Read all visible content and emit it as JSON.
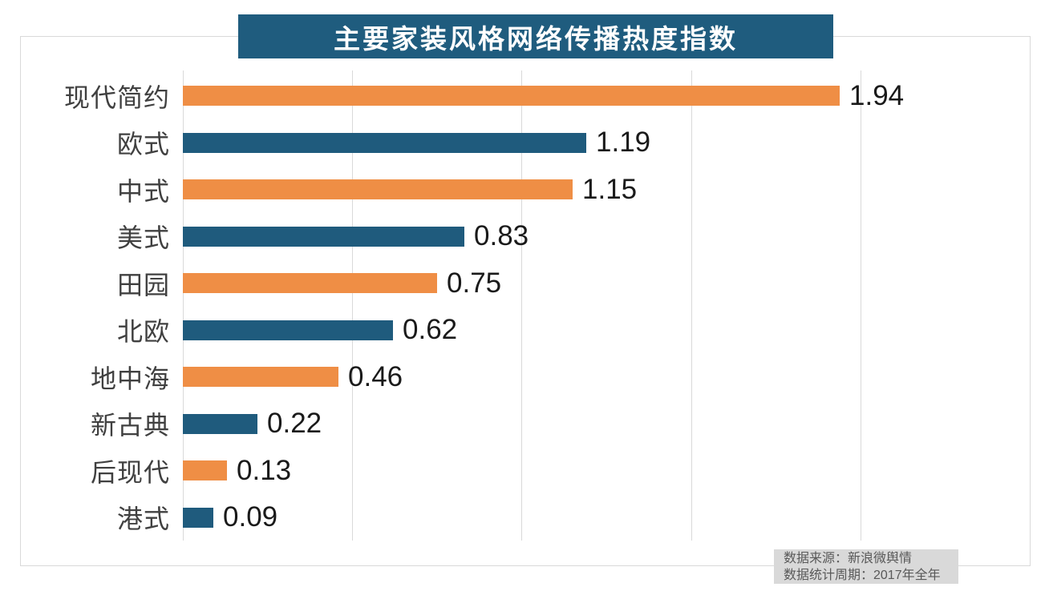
{
  "header": {
    "title": "主要家装风格网络传播热度指数"
  },
  "chart_data": {
    "type": "bar",
    "orientation": "horizontal",
    "title": "主要家装风格网络传播热度指数",
    "categories": [
      "现代简约",
      "欧式",
      "中式",
      "美式",
      "田园",
      "北欧",
      "地中海",
      "新古典",
      "后现代",
      "港式"
    ],
    "values": [
      1.94,
      1.19,
      1.15,
      0.83,
      0.75,
      0.62,
      0.46,
      0.22,
      0.13,
      0.09
    ],
    "value_labels": [
      "1.94",
      "1.19",
      "1.15",
      "0.83",
      "0.75",
      "0.62",
      "0.46",
      "0.22",
      "0.13",
      "0.09"
    ],
    "xlim": [
      0,
      2.5
    ],
    "gridline_interval": 0.5,
    "grid": true,
    "legend": "none",
    "bar_color_pattern": "alternating",
    "bar_color_odd_rows": "#EF8E45",
    "bar_color_even_rows": "#1F5B7D"
  },
  "footer_note": {
    "line1": "数据来源：新浪微舆情",
    "line2": "数据统计周期：2017年全年"
  },
  "colors": {
    "orange": "#EF8E45",
    "blue": "#1F5B7D",
    "title_bg": "#1F5C7E",
    "title_text": "#FFFFFF",
    "gridline": "#D9D9D9",
    "frame_border": "#D9D9D9",
    "category_label": "#404040",
    "value_label": "#1A1A1A",
    "note_bg": "#D9D9D9",
    "note_text": "#595959"
  }
}
